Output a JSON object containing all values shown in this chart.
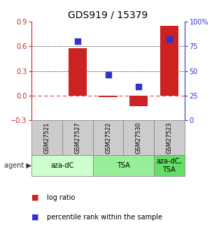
{
  "title": "GDS919 / 15379",
  "samples": [
    "GSM27521",
    "GSM27527",
    "GSM27522",
    "GSM27530",
    "GSM27523"
  ],
  "log_ratio": [
    0.0,
    0.575,
    -0.02,
    -0.13,
    0.85
  ],
  "percentile_rank": [
    null,
    0.8,
    0.46,
    0.34,
    0.82
  ],
  "ylim_left": [
    -0.3,
    0.9
  ],
  "ylim_right": [
    0,
    100
  ],
  "yticks_left": [
    -0.3,
    0.0,
    0.3,
    0.6,
    0.9
  ],
  "yticks_right": [
    0,
    25,
    50,
    75,
    100
  ],
  "hlines_dotted": [
    0.3,
    0.6
  ],
  "hline_zero_color": "#cc2222",
  "agent_groups": [
    {
      "label": "aza-dC",
      "color": "#ccffcc",
      "span": [
        0,
        2
      ]
    },
    {
      "label": "TSA",
      "color": "#99ee99",
      "span": [
        2,
        4
      ]
    },
    {
      "label": "aza-dC,\nTSA",
      "color": "#66dd66",
      "span": [
        4,
        5
      ]
    }
  ],
  "bar_color": "#cc2222",
  "dot_color": "#3333cc",
  "bar_width": 0.6,
  "dot_size": 30,
  "legend_items": [
    {
      "color": "#cc2222",
      "label": "log ratio"
    },
    {
      "color": "#3333cc",
      "label": "percentile rank within the sample"
    }
  ],
  "sample_box_color": "#cccccc",
  "background_color": "#ffffff",
  "title_fontsize": 10,
  "tick_fontsize": 7,
  "sample_fontsize": 6,
  "agent_fontsize": 7,
  "legend_fontsize": 7
}
